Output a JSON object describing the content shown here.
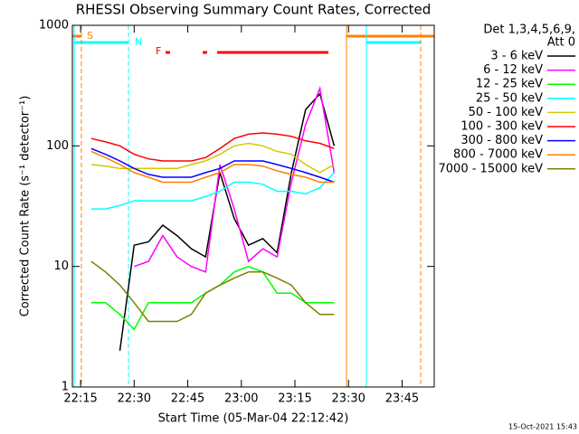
{
  "chart_data": {
    "type": "line",
    "title": "RHESSI Observing Summary Count Rates, Corrected",
    "x_label": "Start Time (05-Mar-04 22:12:42)",
    "y_label": "Corrected Count Rate (s⁻¹ detector⁻¹)",
    "legend_title": [
      "Det 1,3,4,5,6,9,",
      "Att 0"
    ],
    "annotations": [
      "S",
      "N",
      "F"
    ],
    "footer": "15-Oct-2021 15:43",
    "log_y": true,
    "x": [
      "22:18",
      "22:22",
      "22:26",
      "22:30",
      "22:34",
      "22:38",
      "22:42",
      "22:46",
      "22:50",
      "22:54",
      "22:58",
      "23:02",
      "23:06",
      "23:10",
      "23:14",
      "23:18",
      "23:22",
      "23:26"
    ],
    "xlim": [
      "22:12:42",
      "23:54"
    ],
    "xticks": [
      "22:15",
      "22:30",
      "22:45",
      "23:00",
      "23:15",
      "23:30",
      "23:45"
    ],
    "ylim": [
      1,
      1000
    ],
    "yticks": [
      1,
      10,
      100,
      1000
    ],
    "series": [
      {
        "name": "3 - 6 keV",
        "color": "#000000",
        "values": [
          null,
          null,
          2,
          15,
          16,
          22,
          18,
          14,
          12,
          60,
          25,
          15,
          17,
          13,
          60,
          200,
          270,
          100
        ]
      },
      {
        "name": "6 - 12 keV",
        "color": "#ff00ff",
        "values": [
          null,
          null,
          null,
          10,
          11,
          18,
          12,
          10,
          9,
          70,
          30,
          11,
          14,
          12,
          50,
          150,
          300,
          60
        ]
      },
      {
        "name": "12 - 25 keV",
        "color": "#00ff00",
        "values": [
          5,
          5,
          4,
          3,
          5,
          5,
          5,
          5,
          6,
          7,
          9,
          10,
          9,
          6,
          6,
          5,
          5,
          5
        ]
      },
      {
        "name": "25 - 50 keV",
        "color": "#00ffff",
        "values": [
          30,
          30,
          32,
          35,
          35,
          35,
          35,
          35,
          38,
          42,
          50,
          50,
          48,
          42,
          42,
          40,
          45,
          60
        ]
      },
      {
        "name": "50 - 100 keV",
        "color": "#d4c800",
        "values": [
          70,
          68,
          65,
          65,
          65,
          65,
          65,
          70,
          75,
          85,
          100,
          105,
          100,
          90,
          85,
          70,
          60,
          70
        ]
      },
      {
        "name": "100 - 300 keV",
        "color": "#ff0000",
        "values": [
          115,
          108,
          100,
          85,
          78,
          75,
          75,
          75,
          80,
          95,
          115,
          125,
          128,
          125,
          120,
          110,
          105,
          95
        ]
      },
      {
        "name": "300 - 800 keV",
        "color": "#0000ff",
        "values": [
          95,
          85,
          75,
          65,
          58,
          55,
          55,
          55,
          60,
          65,
          75,
          75,
          75,
          70,
          65,
          60,
          55,
          50
        ]
      },
      {
        "name": "800 - 7000 keV",
        "color": "#ff8000",
        "values": [
          90,
          80,
          70,
          60,
          55,
          50,
          50,
          50,
          55,
          60,
          70,
          70,
          68,
          62,
          58,
          55,
          50,
          50
        ]
      },
      {
        "name": "7000 - 15000 keV",
        "color": "#808000",
        "values": [
          11,
          9,
          7,
          5,
          3.5,
          3.5,
          3.5,
          4,
          6,
          7,
          8,
          9,
          9,
          8,
          7,
          5,
          4,
          4
        ]
      }
    ]
  }
}
